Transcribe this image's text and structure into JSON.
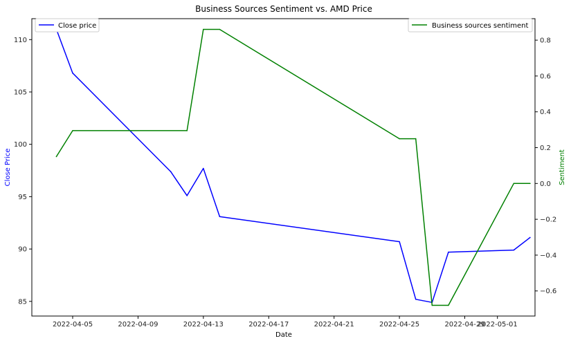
{
  "chart_data": {
    "type": "line",
    "title": "Business Sources Sentiment vs. AMD Price",
    "xlabel": "Date",
    "ylabel_left": "Close Price",
    "ylabel_right": "Sentiment",
    "x_tick_labels": [
      "2022-04-05",
      "2022-04-09",
      "2022-04-13",
      "2022-04-17",
      "2022-04-21",
      "2022-04-25",
      "2022-04-29",
      "2022-05-01"
    ],
    "x_tick_days": [
      1,
      5,
      9,
      13,
      17,
      21,
      25,
      27
    ],
    "xlim_days": [
      -1.5,
      29.3
    ],
    "x_origin_date": "2022-04-04",
    "y_left_ticks": [
      85,
      90,
      95,
      100,
      105,
      110
    ],
    "y_left_lim": [
      83.6,
      112.0
    ],
    "y_right_ticks": [
      -0.6,
      -0.4,
      -0.2,
      0.0,
      0.2,
      0.4,
      0.6,
      0.8
    ],
    "y_right_ticks_text": [
      "−0.6",
      "−0.4",
      "−0.2",
      "0.0",
      "0.2",
      "0.4",
      "0.6",
      "0.8"
    ],
    "y_right_lim": [
      -0.74,
      0.92
    ],
    "series": [
      {
        "name": "Close price",
        "axis": "left",
        "color": "#0000ff",
        "x_days": [
          0,
          1,
          7,
          8,
          9,
          10,
          21,
          22,
          23,
          24,
          28,
          29
        ],
        "values": [
          111.0,
          106.8,
          97.4,
          95.1,
          97.7,
          93.1,
          90.7,
          85.2,
          84.9,
          89.7,
          89.9,
          91.1
        ]
      },
      {
        "name": "Business sources sentiment",
        "axis": "right",
        "color": "#008000",
        "x_days": [
          0,
          1,
          8,
          9,
          10,
          21,
          22,
          23,
          24,
          28,
          29
        ],
        "values": [
          0.15,
          0.295,
          0.295,
          0.86,
          0.86,
          0.25,
          0.25,
          -0.68,
          -0.68,
          0.0,
          0.0
        ]
      }
    ],
    "legend": [
      {
        "label": "Close price",
        "position": "top-left"
      },
      {
        "label": "Business sources sentiment",
        "position": "top-right"
      }
    ],
    "grid": false
  }
}
